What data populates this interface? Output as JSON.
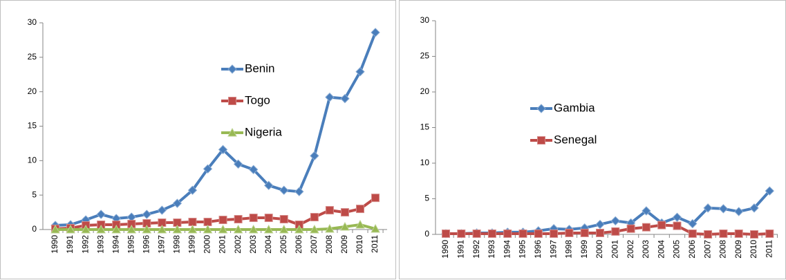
{
  "chart_data": [
    {
      "type": "line",
      "categories": [
        "1990",
        "1991",
        "1992",
        "1993",
        "1994",
        "1995",
        "1996",
        "1997",
        "1998",
        "1999",
        "2000",
        "2001",
        "2002",
        "2003",
        "2004",
        "2005",
        "2006",
        "2007",
        "2008",
        "2009",
        "2010",
        "2011"
      ],
      "ylim": [
        0,
        30
      ],
      "yticks": [
        0,
        5,
        10,
        15,
        20,
        25,
        30
      ],
      "series": [
        {
          "name": "Benin",
          "color": "#4a7ebb",
          "marker": "diamond",
          "values": [
            0.6,
            0.7,
            1.4,
            2.2,
            1.6,
            1.8,
            2.2,
            2.8,
            3.8,
            5.7,
            8.8,
            11.6,
            9.5,
            8.7,
            6.4,
            5.7,
            5.5,
            10.7,
            19.2,
            19.0,
            22.9,
            28.6
          ]
        },
        {
          "name": "Togo",
          "color": "#be4b48",
          "marker": "square",
          "values": [
            0.1,
            0.2,
            0.6,
            0.7,
            0.7,
            0.8,
            0.9,
            1.0,
            1.0,
            1.1,
            1.1,
            1.4,
            1.5,
            1.7,
            1.7,
            1.5,
            0.7,
            1.8,
            2.8,
            2.5,
            3.0,
            4.6
          ]
        },
        {
          "name": "Nigeria",
          "color": "#98b954",
          "marker": "triangle",
          "values": [
            0,
            0,
            0,
            0,
            0,
            0,
            0,
            0,
            0,
            0,
            0,
            0,
            0,
            0,
            0,
            0,
            0,
            0,
            0.1,
            0.4,
            0.7,
            0.1
          ]
        }
      ]
    },
    {
      "type": "line",
      "categories": [
        "1990",
        "1991",
        "1992",
        "1993",
        "1994",
        "1995",
        "1996",
        "1997",
        "1998",
        "1999",
        "2000",
        "2001",
        "2002",
        "2003",
        "2004",
        "2005",
        "2006",
        "2007",
        "2008",
        "2009",
        "2010",
        "2011"
      ],
      "ylim": [
        0,
        30
      ],
      "yticks": [
        0,
        5,
        10,
        15,
        20,
        25,
        30
      ],
      "series": [
        {
          "name": "Gambia",
          "color": "#4a7ebb",
          "marker": "diamond",
          "values": [
            0.1,
            0.1,
            0.2,
            0.2,
            0.3,
            0.3,
            0.5,
            0.8,
            0.7,
            0.9,
            1.4,
            1.9,
            1.6,
            3.3,
            1.6,
            2.4,
            1.5,
            3.7,
            3.6,
            3.2,
            3.7,
            6.1
          ]
        },
        {
          "name": "Senegal",
          "color": "#be4b48",
          "marker": "square",
          "values": [
            0.1,
            0.1,
            0.1,
            0.1,
            0.1,
            0.1,
            0.1,
            0.1,
            0.2,
            0.2,
            0.2,
            0.4,
            0.8,
            1.0,
            1.3,
            1.2,
            0.1,
            0.0,
            0.1,
            0.1,
            0.0,
            0.1
          ]
        }
      ]
    }
  ]
}
